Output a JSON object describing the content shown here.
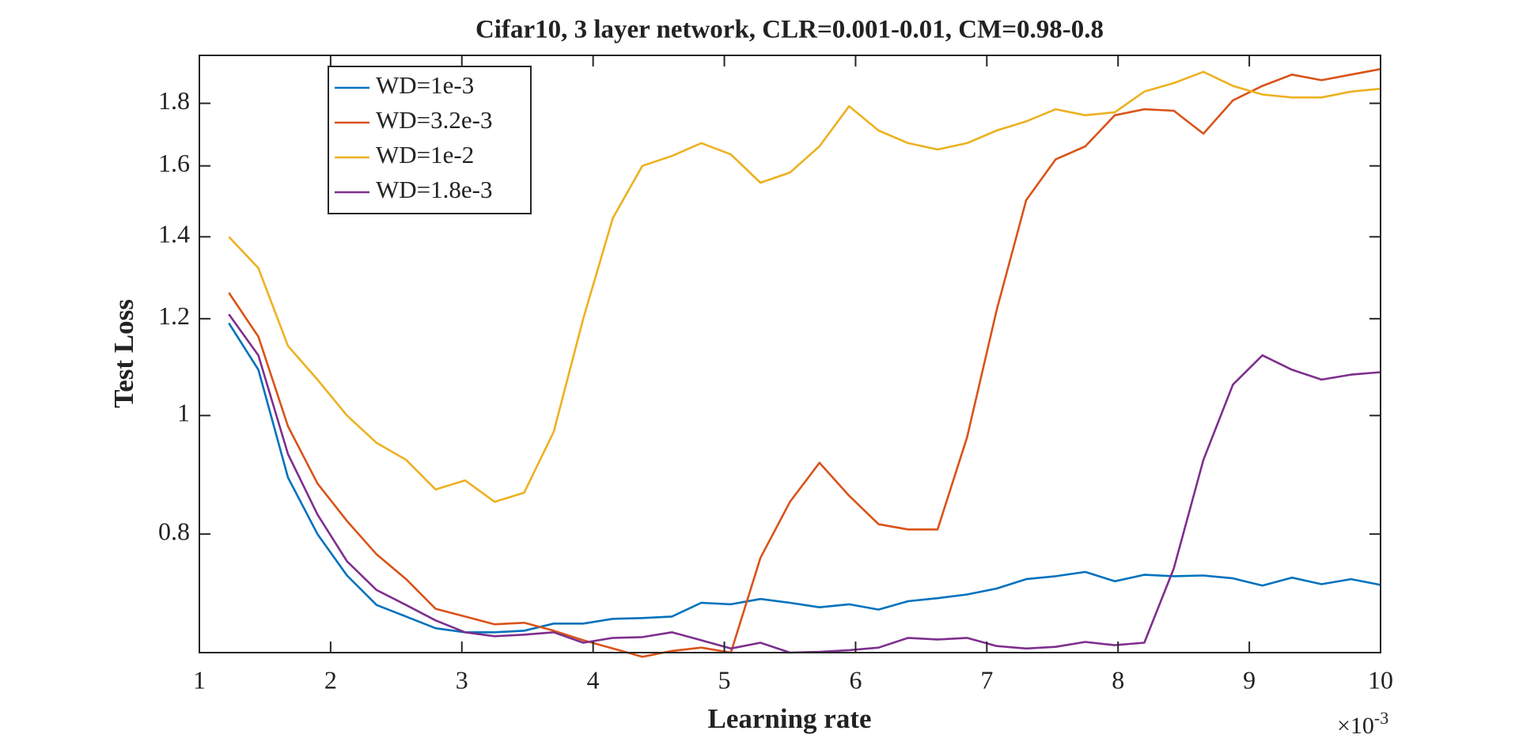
{
  "chart_data": {
    "type": "line",
    "title": "Cifar10, 3 layer network, CLR=0.001-0.01, CM=0.98-0.8",
    "x_label": "Learning rate",
    "y_label": "Test Loss",
    "x_multiplier": {
      "base": "×10",
      "exponent": "-3"
    },
    "x": [
      1.225,
      1.45,
      1.675,
      1.9,
      2.125,
      2.35,
      2.575,
      2.8,
      3.025,
      3.25,
      3.475,
      3.7,
      3.925,
      4.15,
      4.375,
      4.6,
      4.825,
      5.05,
      5.275,
      5.5,
      5.725,
      5.95,
      6.175,
      6.4,
      6.625,
      6.85,
      7.075,
      7.3,
      7.525,
      7.75,
      7.975,
      8.2,
      8.425,
      8.65,
      8.875,
      9.1,
      9.325,
      9.55,
      9.775,
      10
    ],
    "series": [
      {
        "name": "WD=1e-3",
        "color": "#0072bd",
        "values": [
          1.19,
          1.09,
          0.89,
          0.8,
          0.74,
          0.7,
          0.685,
          0.67,
          0.665,
          0.665,
          0.667,
          0.676,
          0.676,
          0.682,
          0.683,
          0.685,
          0.703,
          0.701,
          0.708,
          0.703,
          0.697,
          0.701,
          0.694,
          0.705,
          0.709,
          0.714,
          0.722,
          0.735,
          0.739,
          0.745,
          0.732,
          0.741,
          0.739,
          0.74,
          0.736,
          0.726,
          0.737,
          0.728,
          0.735,
          0.727
        ]
      },
      {
        "name": "WD=3.2e-3",
        "color": "#d95319",
        "values": [
          1.26,
          1.16,
          0.98,
          0.88,
          0.82,
          0.77,
          0.735,
          0.695,
          0.685,
          0.675,
          0.677,
          0.667,
          0.655,
          0.645,
          0.635,
          0.642,
          0.646,
          0.64,
          0.765,
          0.85,
          0.915,
          0.86,
          0.815,
          0.807,
          0.807,
          0.96,
          1.22,
          1.5,
          1.62,
          1.66,
          1.76,
          1.78,
          1.775,
          1.7,
          1.81,
          1.86,
          1.9,
          1.88,
          1.9,
          1.92
        ]
      },
      {
        "name": "WD=1e-2",
        "color": "#edb120",
        "values": [
          1.4,
          1.32,
          1.14,
          1.07,
          1.0,
          0.95,
          0.92,
          0.87,
          0.885,
          0.85,
          0.865,
          0.97,
          1.2,
          1.45,
          1.6,
          1.63,
          1.67,
          1.635,
          1.55,
          1.58,
          1.66,
          1.79,
          1.71,
          1.67,
          1.65,
          1.67,
          1.71,
          1.74,
          1.78,
          1.76,
          1.77,
          1.84,
          1.87,
          1.91,
          1.86,
          1.83,
          1.82,
          1.82,
          1.84,
          1.85
        ]
      },
      {
        "name": "WD=1.8e-3",
        "color": "#7e2f8e",
        "values": [
          1.21,
          1.12,
          0.93,
          0.83,
          0.76,
          0.72,
          0.7,
          0.68,
          0.665,
          0.66,
          0.662,
          0.665,
          0.652,
          0.658,
          0.659,
          0.665,
          0.655,
          0.645,
          0.652,
          0.64,
          0.641,
          0.643,
          0.646,
          0.658,
          0.656,
          0.658,
          0.648,
          0.645,
          0.647,
          0.653,
          0.649,
          0.652,
          0.75,
          0.92,
          1.06,
          1.12,
          1.09,
          1.07,
          1.08,
          1.085
        ]
      }
    ],
    "xlim": [
      1,
      10
    ],
    "xticks": [
      1,
      2,
      3,
      4,
      5,
      6,
      7,
      8,
      9,
      10
    ],
    "ylim": [
      0.64,
      1.97
    ],
    "yticks": [
      0.8,
      1,
      1.2,
      1.4,
      1.6,
      1.8
    ],
    "y_scale": "log",
    "grid": false,
    "legend_position": "upper-left"
  }
}
